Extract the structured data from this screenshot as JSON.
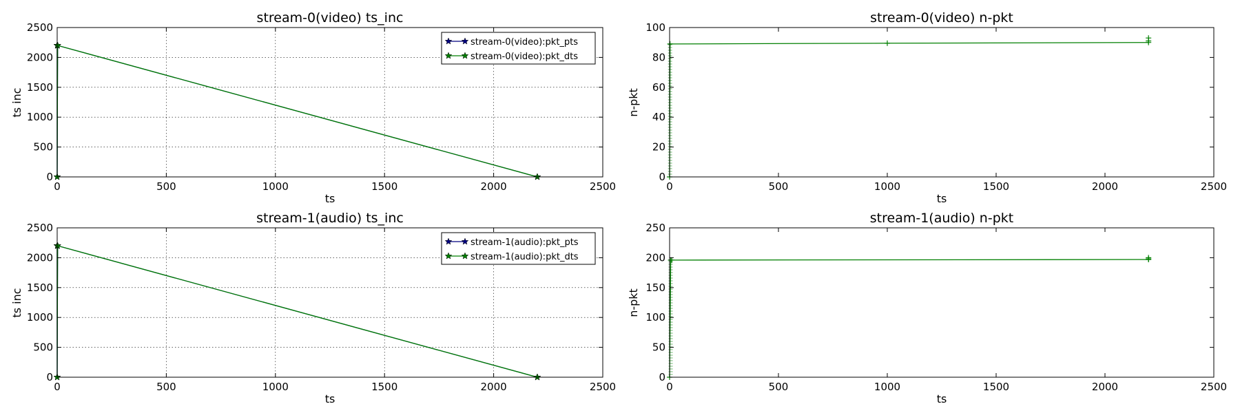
{
  "chart_data": [
    {
      "id": "tl",
      "type": "line",
      "title": "stream-0(video) ts_inc",
      "xlabel": "ts",
      "ylabel": "ts inc",
      "xlim": [
        0,
        2500
      ],
      "ylim": [
        0,
        2500
      ],
      "xticks": [
        0,
        500,
        1000,
        1500,
        2000,
        2500
      ],
      "yticks": [
        0,
        500,
        1000,
        1500,
        2000,
        2500
      ],
      "grid": true,
      "legend": "top-right",
      "marker": "star",
      "series": [
        {
          "name": "stream-0(video):pkt_pts",
          "color": "#00007f",
          "x": [
            0,
            0,
            2,
            2200
          ],
          "y": [
            2200,
            0,
            2200,
            0
          ]
        },
        {
          "name": "stream-0(video):pkt_dts",
          "color": "#007f00",
          "x": [
            0,
            0,
            2,
            2200
          ],
          "y": [
            2200,
            0,
            2200,
            0
          ]
        }
      ]
    },
    {
      "id": "tr",
      "type": "line",
      "title": "stream-0(video) n-pkt",
      "xlabel": "ts",
      "ylabel": "n-pkt",
      "xlim": [
        0,
        2500
      ],
      "ylim": [
        0,
        100
      ],
      "xticks": [
        0,
        500,
        1000,
        1500,
        2000,
        2500
      ],
      "yticks": [
        0,
        20,
        40,
        60,
        80,
        100
      ],
      "grid": false,
      "marker": "plus",
      "series": [
        {
          "color": "#007f00",
          "x": [
            0,
            2,
            1000,
            2200,
            2200,
            2200
          ],
          "y": [
            0,
            89,
            89.5,
            90,
            91,
            93
          ]
        }
      ]
    },
    {
      "id": "bl",
      "type": "line",
      "title": "stream-1(audio) ts_inc",
      "xlabel": "ts",
      "ylabel": "ts inc",
      "xlim": [
        0,
        2500
      ],
      "ylim": [
        0,
        2500
      ],
      "xticks": [
        0,
        500,
        1000,
        1500,
        2000,
        2500
      ],
      "yticks": [
        0,
        500,
        1000,
        1500,
        2000,
        2500
      ],
      "grid": true,
      "legend": "top-right",
      "marker": "star",
      "series": [
        {
          "name": "stream-1(audio):pkt_pts",
          "color": "#00007f",
          "x": [
            0,
            0,
            2,
            2200
          ],
          "y": [
            2200,
            0,
            2200,
            0
          ]
        },
        {
          "name": "stream-1(audio):pkt_dts",
          "color": "#007f00",
          "x": [
            0,
            0,
            2,
            2200
          ],
          "y": [
            2200,
            0,
            2200,
            0
          ]
        }
      ]
    },
    {
      "id": "br",
      "type": "line",
      "title": "stream-1(audio) n-pkt",
      "xlabel": "ts",
      "ylabel": "n-pkt",
      "xlim": [
        0,
        2500
      ],
      "ylim": [
        0,
        250
      ],
      "xticks": [
        0,
        500,
        1000,
        1500,
        2000,
        2500
      ],
      "yticks": [
        0,
        50,
        100,
        150,
        200,
        250
      ],
      "grid": false,
      "marker": "plus",
      "series": [
        {
          "color": "#007f00",
          "x": [
            0,
            5,
            10,
            2200,
            2200,
            2200
          ],
          "y": [
            0,
            196,
            196,
            197,
            198,
            200
          ]
        }
      ]
    }
  ]
}
